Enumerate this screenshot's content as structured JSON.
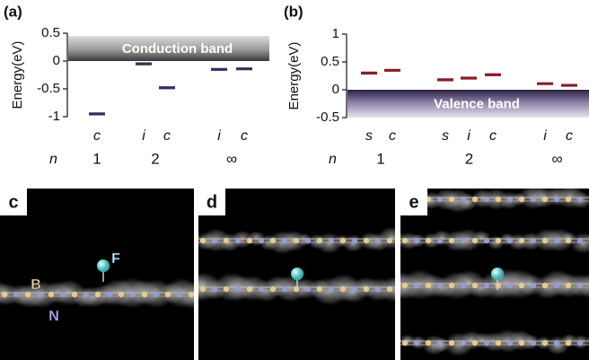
{
  "chart_data": [
    {
      "type": "level",
      "panel_label": "(a)",
      "y_label": "Energy(eV)",
      "color": "#3b2a5c",
      "ylim": [
        -1,
        0.5
      ],
      "yticks": [
        -1,
        -0.5,
        0,
        0.5
      ],
      "band": {
        "label": "Conduction band",
        "range": [
          0,
          0.45
        ]
      },
      "row_label": "n",
      "groups": [
        {
          "label": "1",
          "categories": [
            "c"
          ],
          "values": [
            -0.95
          ]
        },
        {
          "label": "2",
          "categories": [
            "i",
            "c"
          ],
          "values": [
            -0.05,
            -0.48
          ]
        },
        {
          "label": "∞",
          "categories": [
            "i",
            "c"
          ],
          "values": [
            -0.15,
            -0.14
          ]
        }
      ]
    },
    {
      "type": "level",
      "panel_label": "(b)",
      "y_label": "Energy(eV)",
      "color": "#8a1c22",
      "ylim": [
        -0.5,
        1
      ],
      "yticks": [
        -0.5,
        0,
        0.5,
        1
      ],
      "band": {
        "label": "Valence band",
        "range": [
          -0.5,
          0
        ]
      },
      "row_label": "n",
      "groups": [
        {
          "label": "1",
          "categories": [
            "s",
            "c"
          ],
          "values": [
            0.3,
            0.35
          ]
        },
        {
          "label": "2",
          "categories": [
            "s",
            "i",
            "c"
          ],
          "values": [
            0.18,
            0.21,
            0.27
          ]
        },
        {
          "label": "∞",
          "categories": [
            "i",
            "c"
          ],
          "values": [
            0.11,
            0.08
          ]
        }
      ]
    }
  ],
  "panels": [
    {
      "label": "c",
      "annotations": [
        "F",
        "B",
        "N"
      ]
    },
    {
      "label": "d"
    },
    {
      "label": "e"
    }
  ]
}
